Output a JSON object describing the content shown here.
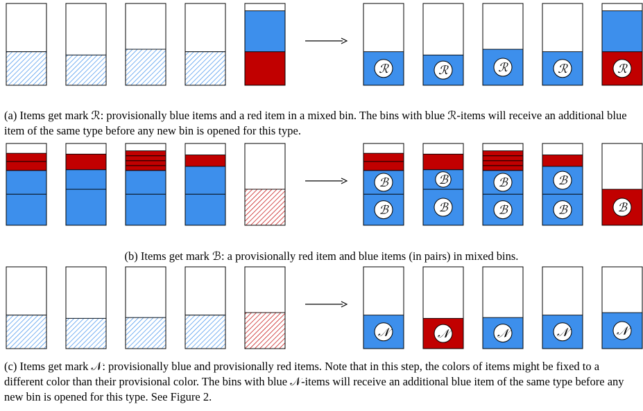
{
  "colors": {
    "blue": "#3d8fec",
    "red": "#c10000",
    "outline": "#000000",
    "background": "#ffffff"
  },
  "arrow_symbol": "⟶",
  "panels": [
    {
      "mark_label": "R",
      "caption": "(a) Items get mark ℛ: provisionally blue items and a red item in a mixed bin. The bins with blue ℛ-items will receive an additional blue item of the same type before any new bin is opened for this type.",
      "before_bins": [
        {
          "items": [
            {
              "fill": "hatch-blue",
              "level": 0.41
            }
          ]
        },
        {
          "items": [
            {
              "fill": "hatch-blue",
              "level": 0.37
            }
          ]
        },
        {
          "items": [
            {
              "fill": "hatch-blue",
              "level": 0.44
            }
          ]
        },
        {
          "items": [
            {
              "fill": "hatch-blue",
              "level": 0.41
            }
          ]
        },
        {
          "items": [
            {
              "fill": "red",
              "level": 0.41
            },
            {
              "fill": "blue",
              "level": 0.5
            }
          ]
        }
      ],
      "after_bins": [
        {
          "items": [
            {
              "fill": "blue",
              "level": 0.41,
              "mark": "ℛ"
            }
          ]
        },
        {
          "items": [
            {
              "fill": "blue",
              "level": 0.37,
              "mark": "ℛ"
            }
          ]
        },
        {
          "items": [
            {
              "fill": "blue",
              "level": 0.44,
              "mark": "ℛ"
            }
          ]
        },
        {
          "items": [
            {
              "fill": "blue",
              "level": 0.41,
              "mark": "ℛ"
            }
          ]
        },
        {
          "items": [
            {
              "fill": "red",
              "level": 0.41,
              "mark": "ℛ"
            },
            {
              "fill": "blue",
              "level": 0.5
            }
          ]
        }
      ]
    },
    {
      "mark_label": "B",
      "caption": "(b) Items get mark ℬ: a provisionally red item and blue items (in pairs) in mixed bins.",
      "before_bins": [
        {
          "items": [
            {
              "fill": "blue",
              "level": 0.38
            },
            {
              "fill": "blue",
              "level": 0.29
            },
            {
              "fill": "red",
              "level": 0.11
            },
            {
              "fill": "red",
              "level": 0.1
            }
          ]
        },
        {
          "items": [
            {
              "fill": "blue",
              "level": 0.44
            },
            {
              "fill": "blue",
              "level": 0.24
            },
            {
              "fill": "red",
              "level": 0.19
            }
          ]
        },
        {
          "items": [
            {
              "fill": "blue",
              "level": 0.38
            },
            {
              "fill": "blue",
              "level": 0.29
            },
            {
              "fill": "red",
              "level": 0.06
            },
            {
              "fill": "red",
              "level": 0.06
            },
            {
              "fill": "red",
              "level": 0.06
            },
            {
              "fill": "red",
              "level": 0.06
            }
          ]
        },
        {
          "items": [
            {
              "fill": "blue",
              "level": 0.38
            },
            {
              "fill": "blue",
              "level": 0.34
            },
            {
              "fill": "red",
              "level": 0.14
            }
          ]
        },
        {
          "items": [
            {
              "fill": "hatch-red",
              "level": 0.44
            }
          ]
        }
      ],
      "after_bins": [
        {
          "items": [
            {
              "fill": "blue",
              "level": 0.38,
              "mark": "ℬ"
            },
            {
              "fill": "blue",
              "level": 0.29,
              "mark": "ℬ"
            },
            {
              "fill": "red",
              "level": 0.11
            },
            {
              "fill": "red",
              "level": 0.1
            }
          ]
        },
        {
          "items": [
            {
              "fill": "blue",
              "level": 0.44,
              "mark": "ℬ"
            },
            {
              "fill": "blue",
              "level": 0.24,
              "mark": "ℬ"
            },
            {
              "fill": "red",
              "level": 0.19
            }
          ]
        },
        {
          "items": [
            {
              "fill": "blue",
              "level": 0.38,
              "mark": "ℬ"
            },
            {
              "fill": "blue",
              "level": 0.29,
              "mark": "ℬ"
            },
            {
              "fill": "red",
              "level": 0.06
            },
            {
              "fill": "red",
              "level": 0.06
            },
            {
              "fill": "red",
              "level": 0.06
            },
            {
              "fill": "red",
              "level": 0.06
            }
          ]
        },
        {
          "items": [
            {
              "fill": "blue",
              "level": 0.38,
              "mark": "ℬ"
            },
            {
              "fill": "blue",
              "level": 0.34,
              "mark": "ℬ"
            },
            {
              "fill": "red",
              "level": 0.14
            }
          ]
        },
        {
          "items": [
            {
              "fill": "red",
              "level": 0.44,
              "mark": "ℬ"
            }
          ]
        }
      ]
    },
    {
      "mark_label": "N",
      "caption": "(c) Items get mark 𝒩: provisionally blue and provisionally red items. Note that in this step, the colors of items might be fixed to a different color than their provisional color. The bins with blue 𝒩-items will receive an additional blue item of the same type before any new bin is opened for this type. See Figure 2.",
      "before_bins": [
        {
          "items": [
            {
              "fill": "hatch-blue",
              "level": 0.41
            }
          ]
        },
        {
          "items": [
            {
              "fill": "hatch-blue",
              "level": 0.37
            }
          ]
        },
        {
          "items": [
            {
              "fill": "hatch-blue",
              "level": 0.38
            }
          ]
        },
        {
          "items": [
            {
              "fill": "hatch-blue",
              "level": 0.41
            }
          ]
        },
        {
          "items": [
            {
              "fill": "hatch-red",
              "level": 0.44
            }
          ]
        }
      ],
      "after_bins": [
        {
          "items": [
            {
              "fill": "blue",
              "level": 0.41,
              "mark": "𝒩"
            }
          ]
        },
        {
          "items": [
            {
              "fill": "red",
              "level": 0.37,
              "mark": "𝒩"
            }
          ]
        },
        {
          "items": [
            {
              "fill": "blue",
              "level": 0.38,
              "mark": "𝒩"
            }
          ]
        },
        {
          "items": [
            {
              "fill": "blue",
              "level": 0.41,
              "mark": "𝒩"
            }
          ]
        },
        {
          "items": [
            {
              "fill": "blue",
              "level": 0.44,
              "mark": "𝒩"
            }
          ]
        }
      ]
    }
  ]
}
